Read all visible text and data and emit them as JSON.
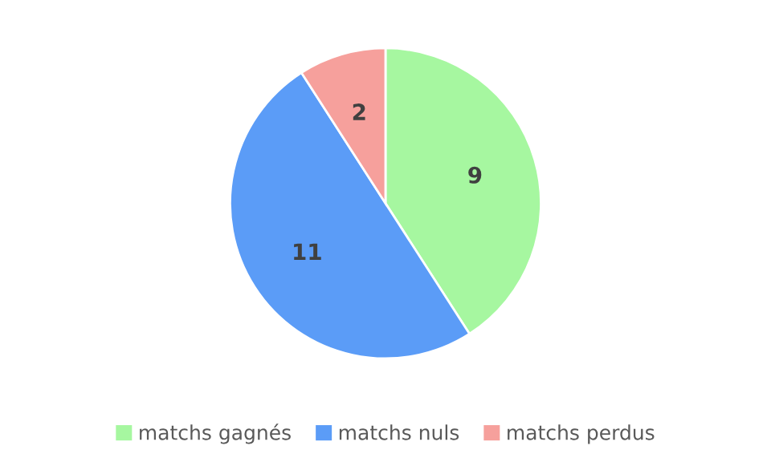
{
  "chart_data": {
    "type": "pie",
    "categories": [
      "matchs gagnés",
      "matchs nuls",
      "matchs perdus"
    ],
    "values": [
      9,
      11,
      2
    ],
    "colors": [
      "#a6f7a0",
      "#5b9cf7",
      "#f6a09c"
    ],
    "data_labels": true,
    "legend": "bottom"
  }
}
